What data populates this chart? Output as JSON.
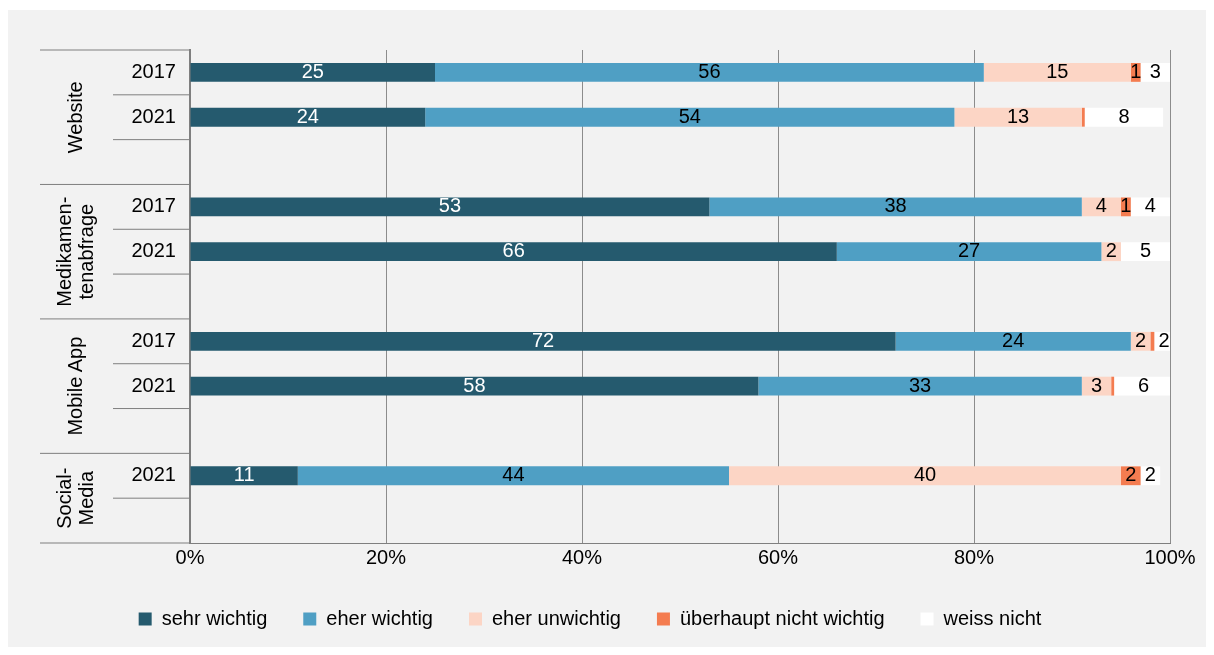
{
  "chart_data": {
    "type": "bar",
    "orientation": "horizontal",
    "stacked": true,
    "categories": [
      "2017",
      "2021",
      null,
      "2017",
      "2021",
      null,
      "2017",
      "2021",
      null,
      "2021",
      null
    ],
    "annotations": [
      "Website",
      "Medikamen-\ntenabfrage",
      "Mobile App",
      "Social-\nMedia"
    ],
    "xlim": [
      0,
      100
    ],
    "xticks": [
      {
        "value": 0,
        "label": "0%"
      },
      {
        "value": 20,
        "label": "20%"
      },
      {
        "value": 40,
        "label": "40%"
      },
      {
        "value": 60,
        "label": "60%"
      },
      {
        "value": 80,
        "label": "80%"
      },
      {
        "value": 100,
        "label": "100%"
      }
    ],
    "grid": "x",
    "legend": "bottom",
    "series": [
      {
        "name": "sehr wichtig",
        "color": "#255a6e",
        "values": [
          25,
          24,
          null,
          53,
          66,
          null,
          72,
          58,
          null,
          11,
          null
        ],
        "value_labels": [
          "25",
          "24",
          null,
          "53",
          "66",
          null,
          "72",
          "58",
          null,
          "11",
          null
        ]
      },
      {
        "name": "eher wichtig",
        "color": "#4f9fc4",
        "values": [
          56,
          54,
          null,
          38,
          27,
          null,
          24,
          33,
          null,
          44,
          null
        ],
        "value_labels": [
          "56",
          "54",
          null,
          "38",
          "27",
          null,
          "24",
          "33",
          null,
          "44",
          null
        ]
      },
      {
        "name": "eher unwichtig",
        "color": "#fcd5c5",
        "values": [
          15,
          13,
          null,
          4,
          2,
          null,
          2,
          3,
          null,
          40,
          null
        ],
        "value_labels": [
          "15",
          "13",
          null,
          "4",
          "2",
          null,
          "2",
          "3",
          null,
          "40",
          null
        ]
      },
      {
        "name": "überhaupt nicht wichtig",
        "color": "#f47c50",
        "values": [
          1,
          0.3,
          null,
          1,
          null,
          null,
          0.4,
          0.3,
          null,
          2,
          null
        ],
        "value_labels": [
          "1",
          null,
          null,
          "1",
          null,
          null,
          null,
          null,
          null,
          "2",
          null
        ]
      },
      {
        "name": "weiss nicht",
        "color": "#ffffff",
        "values": [
          3,
          8,
          null,
          4,
          5,
          null,
          2,
          6,
          null,
          2,
          null
        ],
        "value_labels": [
          "3",
          "8",
          null,
          "4",
          "5",
          null,
          "2",
          "6",
          null,
          "2",
          null
        ]
      }
    ]
  }
}
